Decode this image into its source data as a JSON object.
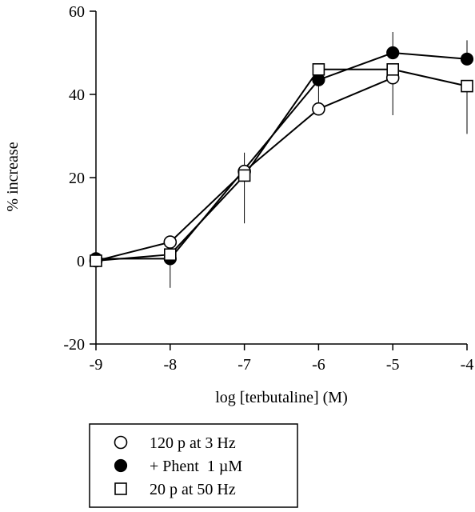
{
  "chart_data": {
    "type": "line",
    "title": "",
    "xlabel": "log [terbutaline] (M)",
    "ylabel": "% increase",
    "xlim": [
      -9,
      -4
    ],
    "ylim": [
      -20,
      60
    ],
    "xticks": [
      "-9",
      "-8",
      "-7",
      "-6",
      "-5",
      "-4"
    ],
    "yticks": [
      "-20",
      "0",
      "20",
      "40",
      "60"
    ],
    "x": [
      -9,
      -8,
      -7,
      -6,
      -5,
      -4
    ],
    "grid": false,
    "legend_position": "bottom",
    "series": [
      {
        "name": "120 p at 3 Hz",
        "marker": "open-circle",
        "color": "#000000",
        "values": [
          0,
          4.5,
          21.5,
          36.5,
          44,
          null
        ],
        "error_up": [
          null,
          null,
          null,
          null,
          null,
          null
        ],
        "error_down": [
          null,
          null,
          null,
          null,
          9,
          null
        ]
      },
      {
        "name": "+ Phent  1 µM",
        "marker": "filled-circle",
        "color": "#000000",
        "values": [
          0.5,
          0.5,
          null,
          43.5,
          50,
          48.5
        ],
        "error_up": [
          3.5,
          null,
          null,
          null,
          5,
          4.5
        ],
        "error_down": [
          null,
          7,
          null,
          6,
          null,
          null
        ]
      },
      {
        "name": "20 p at 50 Hz",
        "marker": "open-square",
        "color": "#000000",
        "values": [
          0,
          1.5,
          20.5,
          46,
          46,
          42
        ],
        "error_up": [
          null,
          null,
          5.5,
          null,
          null,
          null
        ],
        "error_down": [
          null,
          null,
          11.5,
          null,
          null,
          11.5
        ]
      }
    ]
  }
}
